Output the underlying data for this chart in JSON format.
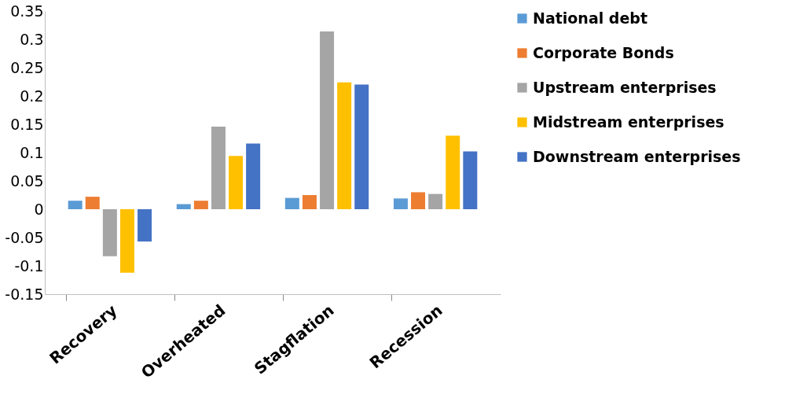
{
  "chart_data": {
    "type": "bar",
    "categories": [
      "Recovery",
      "Overheated",
      "Stagflation",
      "Recession"
    ],
    "series": [
      {
        "name": "National debt",
        "color": "#5b9bd5",
        "values": [
          0.015,
          0.009,
          0.02,
          0.019
        ]
      },
      {
        "name": "Corporate Bonds",
        "color": "#ed7d31",
        "values": [
          0.022,
          0.015,
          0.025,
          0.03
        ]
      },
      {
        "name": "Upstream enterprises",
        "color": "#a5a5a5",
        "values": [
          -0.083,
          0.146,
          0.314,
          0.027
        ]
      },
      {
        "name": "Midstream enterprises",
        "color": "#ffc000",
        "values": [
          -0.112,
          0.094,
          0.224,
          0.13
        ]
      },
      {
        "name": "Downstream enterprises",
        "color": "#4472c4",
        "values": [
          -0.057,
          0.116,
          0.22,
          0.102
        ]
      }
    ],
    "ylim": [
      -0.15,
      0.35
    ],
    "yticks": [
      -0.15,
      -0.1,
      -0.05,
      0,
      0.05,
      0.1,
      0.15,
      0.2,
      0.25,
      0.3,
      0.35
    ],
    "grid": false,
    "legend": "right"
  }
}
